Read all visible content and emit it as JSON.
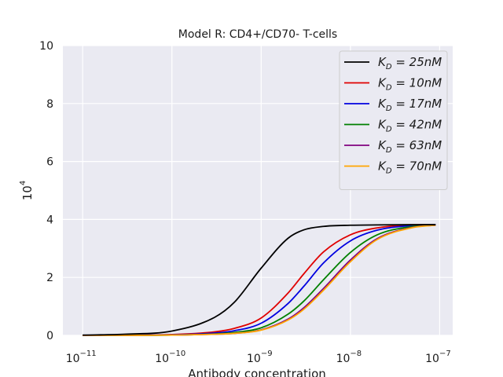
{
  "chart_data": {
    "type": "line",
    "title": "Model R: CD4+/CD70- T-cells",
    "xlabel": "Antibody concentration",
    "ylabel": "10^4",
    "xscale": "log",
    "xlim": [
      6e-12,
      1.4e-07
    ],
    "ylim": [
      0,
      10
    ],
    "xticks": [
      1e-11,
      1e-10,
      1e-09,
      1e-08,
      1e-07
    ],
    "xtick_labels": [
      {
        "base": "10",
        "exp": "−11"
      },
      {
        "base": "10",
        "exp": "−10"
      },
      {
        "base": "10",
        "exp": "−9"
      },
      {
        "base": "10",
        "exp": "−8"
      },
      {
        "base": "10",
        "exp": "−7"
      }
    ],
    "yticks": [
      0,
      2,
      4,
      6,
      8,
      10
    ],
    "ytick_labels": [
      "0",
      "2",
      "4",
      "6",
      "8",
      "10"
    ],
    "grid": true,
    "legend_position": "top-right",
    "x": [
      1e-11,
      3e-11,
      1e-10,
      3e-10,
      5e-10,
      1e-09,
      2e-09,
      3e-09,
      5e-09,
      1e-08,
      2e-08,
      5e-08,
      9e-08
    ],
    "series": [
      {
        "name": "K_D = 25nM",
        "color": "#000000",
        "values": [
          0.01,
          0.04,
          0.15,
          0.62,
          1.14,
          2.32,
          3.35,
          3.64,
          3.76,
          3.8,
          3.81,
          3.82,
          3.82
        ]
      },
      {
        "name": "K_D = 10nM",
        "color": "#e00000",
        "values": [
          0.0,
          0.01,
          0.03,
          0.12,
          0.24,
          0.6,
          1.46,
          2.12,
          2.88,
          3.47,
          3.71,
          3.81,
          3.82
        ]
      },
      {
        "name": "K_D = 17nM",
        "color": "#0000e0",
        "values": [
          0.0,
          0.01,
          0.02,
          0.08,
          0.16,
          0.42,
          1.1,
          1.69,
          2.5,
          3.26,
          3.63,
          3.79,
          3.82
        ]
      },
      {
        "name": "K_D = 42nM",
        "color": "#008000",
        "values": [
          0.0,
          0.0,
          0.01,
          0.05,
          0.1,
          0.26,
          0.73,
          1.18,
          1.92,
          2.86,
          3.47,
          3.76,
          3.81
        ]
      },
      {
        "name": "K_D = 63nM",
        "color": "#800080",
        "values": [
          0.0,
          0.0,
          0.01,
          0.04,
          0.07,
          0.19,
          0.56,
          0.95,
          1.62,
          2.6,
          3.34,
          3.73,
          3.8
        ]
      },
      {
        "name": "K_D = 70nM",
        "color": "#ffa500",
        "values": [
          0.0,
          0.0,
          0.01,
          0.04,
          0.07,
          0.18,
          0.53,
          0.9,
          1.56,
          2.54,
          3.31,
          3.72,
          3.8
        ]
      }
    ]
  },
  "colors": {
    "plot_background": "#eaeaf2",
    "grid": "#ffffff",
    "legend_background": "#eaeaf2",
    "legend_border": "#cccccc"
  }
}
